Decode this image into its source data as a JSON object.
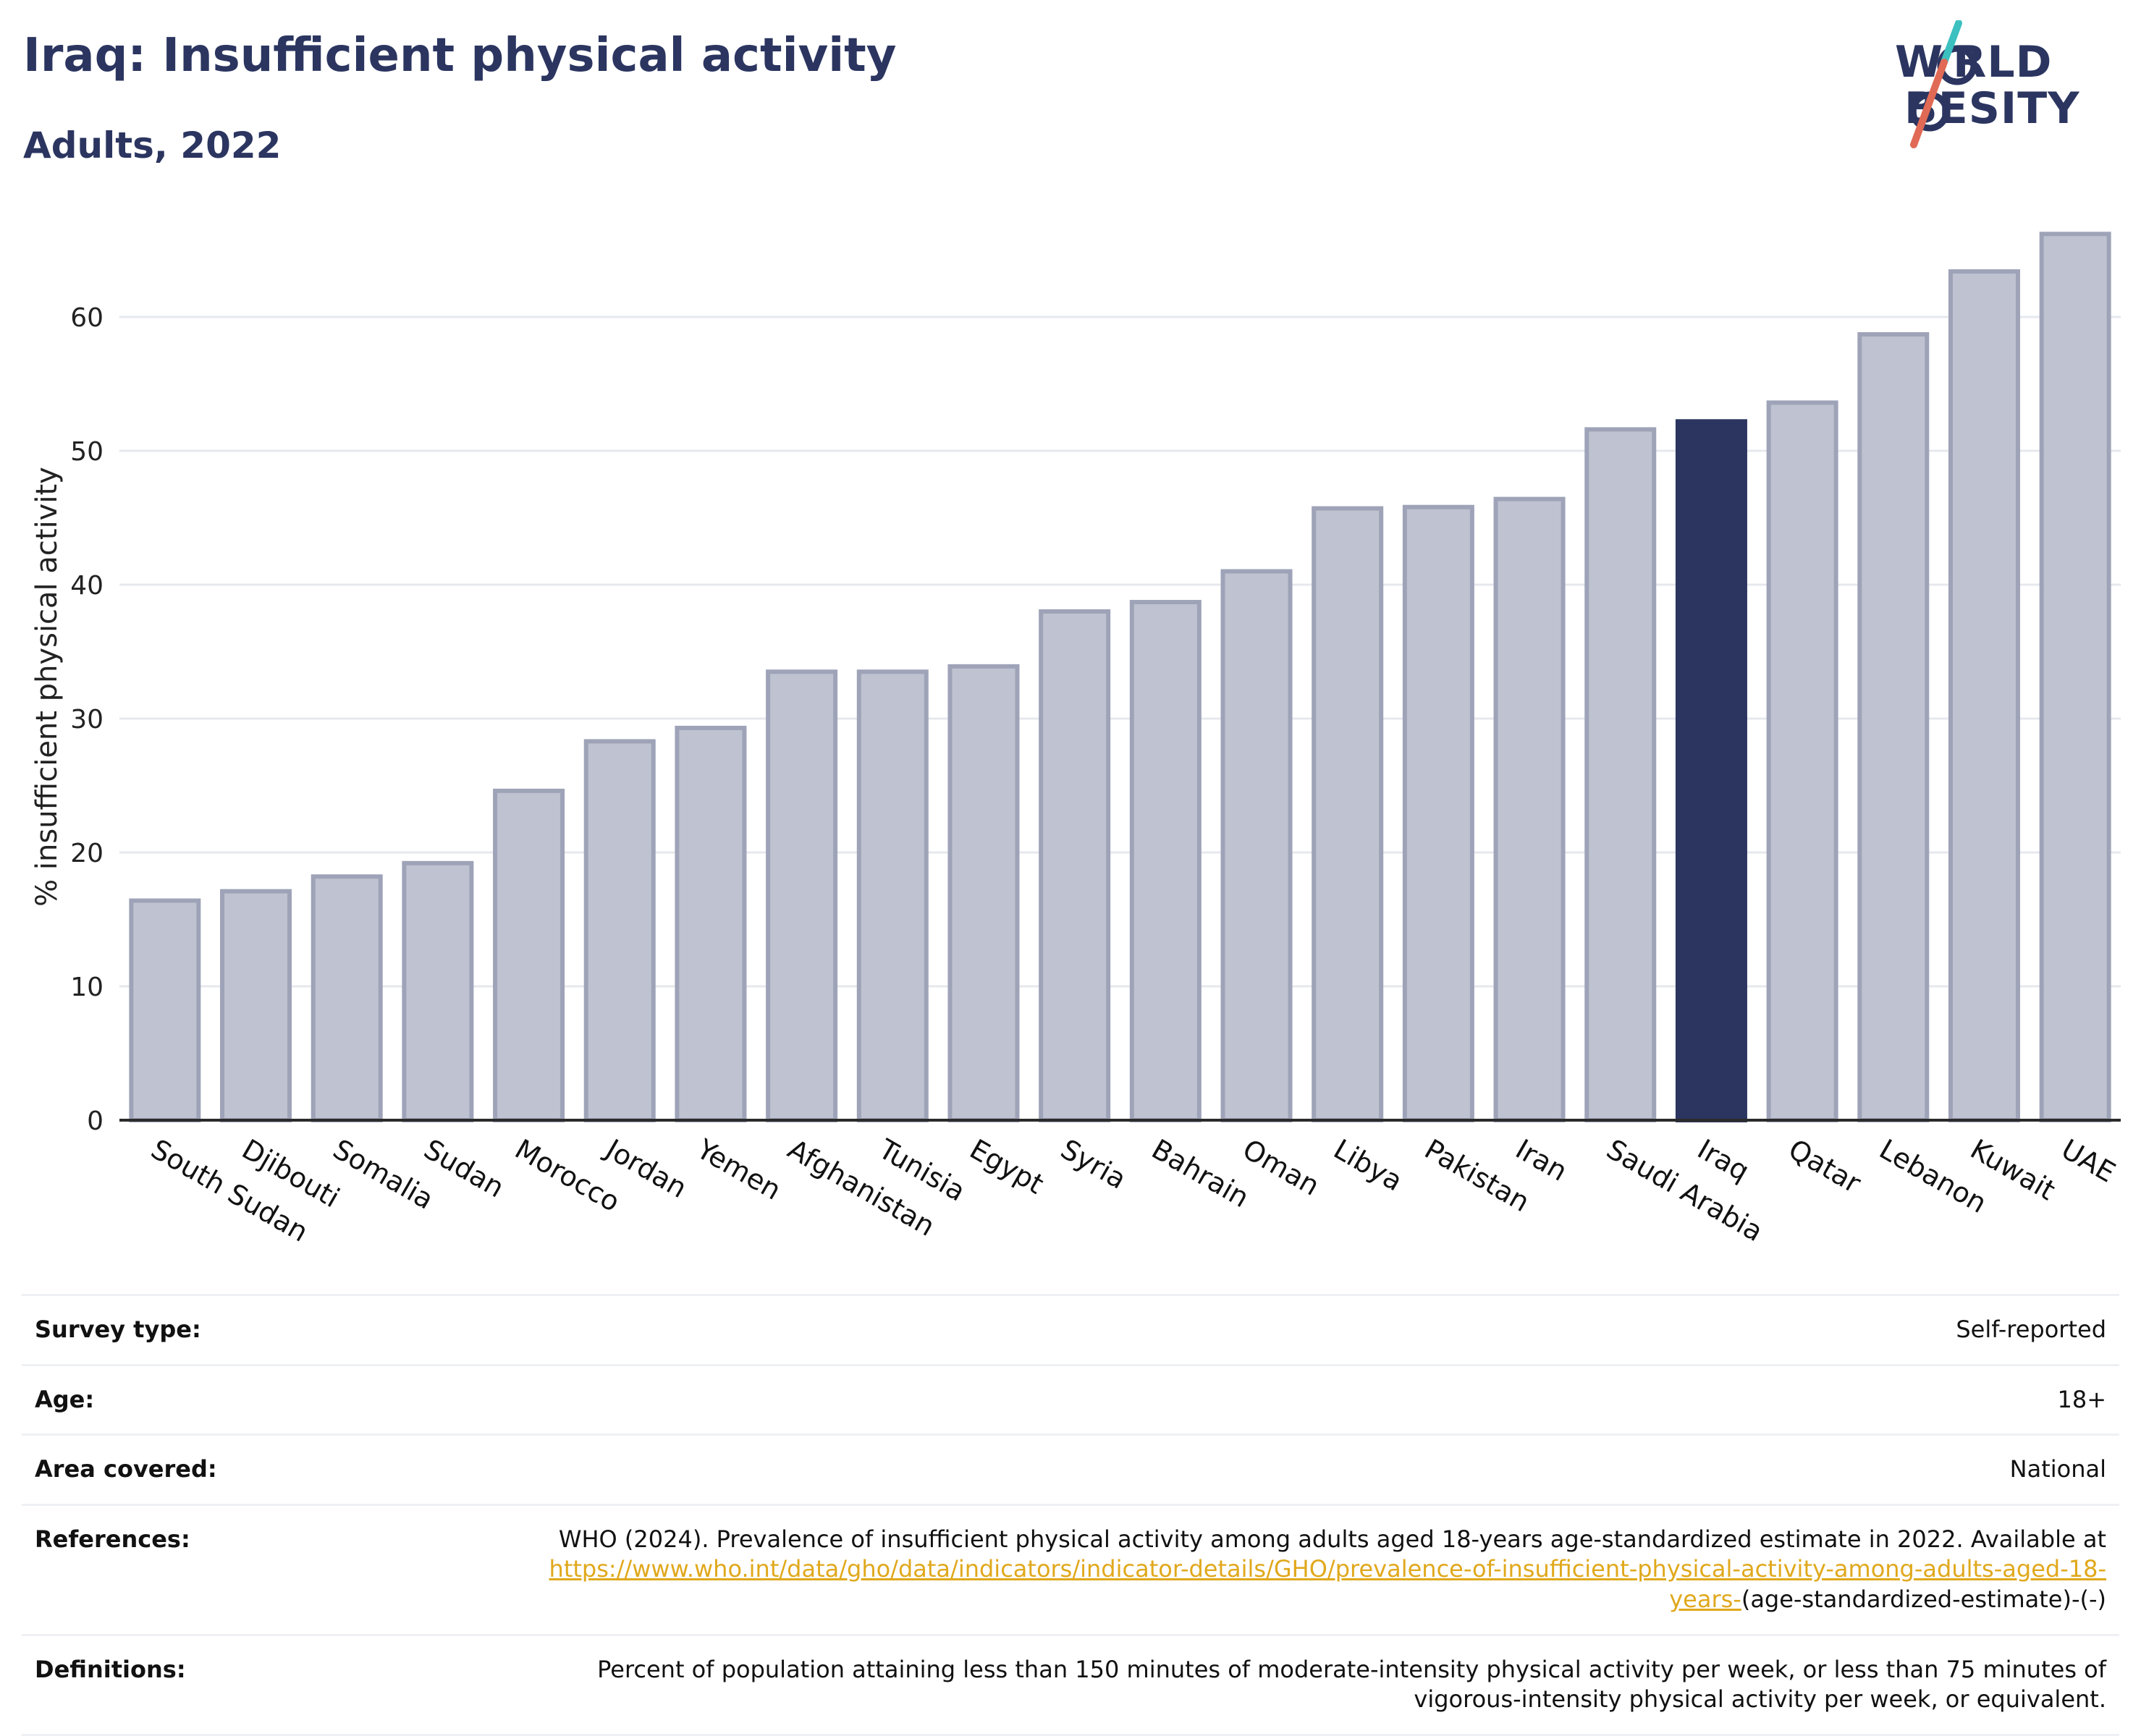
{
  "header": {
    "title": "Iraq: Insufficient physical activity",
    "subtitle": "Adults, 2022"
  },
  "logo": {
    "line1": "W RLD",
    "line2": " BESITY",
    "stroke_colors": [
      "#3cc0c0",
      "#e06a55"
    ]
  },
  "colors": {
    "bar": "#bfc2d0",
    "bar_border": "#9ea3b8",
    "highlight": "#2b3560",
    "grid": "#e6e8ee",
    "axis": "#2b2b2b"
  },
  "chart_data": {
    "type": "bar",
    "ylabel": "% insufficient physical activity",
    "ylim": [
      0,
      68
    ],
    "yticks": [
      0,
      10,
      20,
      30,
      40,
      50,
      60
    ],
    "grid": true,
    "highlight": "Iraq",
    "categories": [
      "South Sudan",
      "Djibouti",
      "Somalia",
      "Sudan",
      "Morocco",
      "Jordan",
      "Yemen",
      "Afghanistan",
      "Tunisia",
      "Egypt",
      "Syria",
      "Bahrain",
      "Oman",
      "Libya",
      "Pakistan",
      "Iran",
      "Saudi Arabia",
      "Iraq",
      "Qatar",
      "Lebanon",
      "Kuwait",
      "UAE"
    ],
    "values": [
      16.4,
      17.1,
      18.2,
      19.2,
      24.6,
      28.3,
      29.3,
      33.5,
      33.5,
      33.9,
      38.0,
      38.7,
      41.0,
      45.7,
      45.8,
      46.4,
      51.6,
      52.2,
      53.6,
      58.7,
      63.4,
      66.2
    ]
  },
  "info": {
    "survey_type": {
      "label": "Survey type:",
      "value": "Self-reported"
    },
    "age": {
      "label": "Age:",
      "value": "18+"
    },
    "area": {
      "label": "Area covered:",
      "value": "National"
    },
    "references": {
      "label": "References:",
      "text": "WHO (2024). Prevalence of insufficient physical activity among adults aged 18-years age-standardized estimate in 2022. Available at",
      "link": "https://www.who.int/data/gho/data/indicators/indicator-details/GHO/prevalence-of-insufficient-physical-activity-among-adults-aged-18-years-",
      "suffix": "(age-standardized-estimate)-(-)"
    },
    "definitions": {
      "label": "Definitions:",
      "value": "Percent of population attaining less than 150 minutes of moderate-intensity physical activity per week, or less than 75 minutes of vigorous-intensity physical activity per week, or equivalent."
    }
  }
}
